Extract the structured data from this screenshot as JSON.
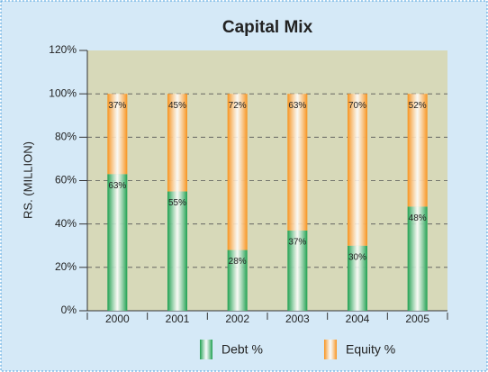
{
  "chart_data": {
    "type": "stacked_bar",
    "title": "Capital Mix",
    "y_label": "RS. (MILLION)",
    "categories": [
      "2000",
      "2001",
      "2002",
      "2003",
      "2004",
      "2005"
    ],
    "series": [
      {
        "name": "Debt %",
        "color": "#1fa050",
        "values": [
          63,
          55,
          28,
          37,
          30,
          48
        ],
        "value_labels": [
          "63%",
          "55%",
          "28%",
          "37%",
          "30%",
          "48%"
        ]
      },
      {
        "name": "Equity %",
        "color": "#f7931e",
        "values": [
          37,
          45,
          72,
          63,
          70,
          52
        ],
        "value_labels": [
          "37%",
          "45%",
          "72%",
          "63%",
          "70%",
          "52%"
        ]
      }
    ],
    "ylim": [
      0,
      120
    ],
    "yticks": [
      {
        "value": 0,
        "label": "0%"
      },
      {
        "value": 20,
        "label": "20%"
      },
      {
        "value": 40,
        "label": "40%"
      },
      {
        "value": 60,
        "label": "60%"
      },
      {
        "value": 80,
        "label": "80%"
      },
      {
        "value": 100,
        "label": "100%"
      },
      {
        "value": 120,
        "label": "120%"
      }
    ],
    "grid": true
  }
}
